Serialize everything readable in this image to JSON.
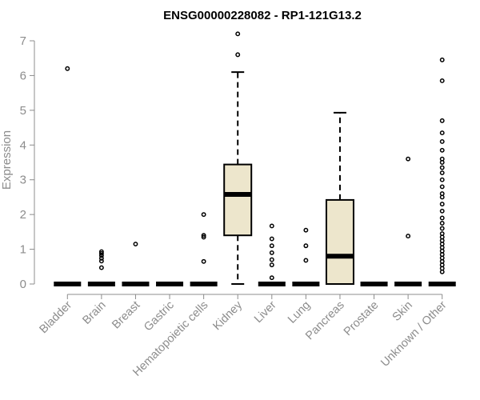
{
  "chart_data": {
    "type": "boxplot",
    "title": "ENSG00000228082 - RP1-121G13.2",
    "ylabel": "Expression",
    "xlabel": "",
    "ylim": [
      0,
      7
    ],
    "yticks": [
      0,
      1,
      2,
      3,
      4,
      5,
      6,
      7
    ],
    "grid": false,
    "colors": {
      "box_fill": "#ede6cc",
      "box_stroke": "#000000",
      "axis": "#8c8c8c",
      "label": "#8c8c8c"
    },
    "categories": [
      "Bladder",
      "Brain",
      "Breast",
      "Gastric",
      "Hematopoietic cells",
      "Kidney",
      "Liver",
      "Lung",
      "Pancreas",
      "Prostate",
      "Skin",
      "Unknown / Other"
    ],
    "boxes": [
      {
        "min": 0,
        "q1": 0,
        "median": 0,
        "q3": 0,
        "max": 0,
        "outliers": [
          6.2
        ]
      },
      {
        "min": 0,
        "q1": 0,
        "median": 0,
        "q3": 0,
        "max": 0,
        "outliers": [
          0.47,
          0.66,
          0.74,
          0.82,
          0.88,
          0.93
        ]
      },
      {
        "min": 0,
        "q1": 0,
        "median": 0,
        "q3": 0,
        "max": 0,
        "outliers": [
          1.15
        ]
      },
      {
        "min": 0,
        "q1": 0,
        "median": 0,
        "q3": 0,
        "max": 0,
        "outliers": []
      },
      {
        "min": 0,
        "q1": 0,
        "median": 0,
        "q3": 0,
        "max": 0,
        "outliers": [
          0.65,
          1.35,
          1.4,
          2.0
        ]
      },
      {
        "min": 0,
        "q1": 1.4,
        "median": 2.58,
        "q3": 3.44,
        "max": 6.1,
        "outliers": [
          6.6,
          7.2
        ]
      },
      {
        "min": 0,
        "q1": 0,
        "median": 0,
        "q3": 0,
        "max": 0,
        "outliers": [
          0.18,
          0.55,
          0.7,
          0.9,
          1.1,
          1.3,
          1.67
        ]
      },
      {
        "min": 0,
        "q1": 0,
        "median": 0,
        "q3": 0,
        "max": 0,
        "outliers": [
          0.68,
          1.1,
          1.55
        ]
      },
      {
        "min": 0,
        "q1": 0,
        "median": 0.8,
        "q3": 2.42,
        "max": 4.93,
        "outliers": []
      },
      {
        "min": 0,
        "q1": 0,
        "median": 0,
        "q3": 0,
        "max": 0,
        "outliers": []
      },
      {
        "min": 0,
        "q1": 0,
        "median": 0,
        "q3": 0,
        "max": 0,
        "outliers": [
          1.38,
          3.6
        ]
      },
      {
        "min": 0,
        "q1": 0,
        "median": 0,
        "q3": 0,
        "max": 0,
        "outliers": [
          0.35,
          0.45,
          0.55,
          0.65,
          0.75,
          0.85,
          0.95,
          1.05,
          1.15,
          1.25,
          1.35,
          1.45,
          1.6,
          1.75,
          1.9,
          2.1,
          2.3,
          2.5,
          2.6,
          2.8,
          3.0,
          3.2,
          3.35,
          3.5,
          3.6,
          3.85,
          4.1,
          4.35,
          4.7,
          5.85,
          6.45
        ]
      }
    ]
  }
}
